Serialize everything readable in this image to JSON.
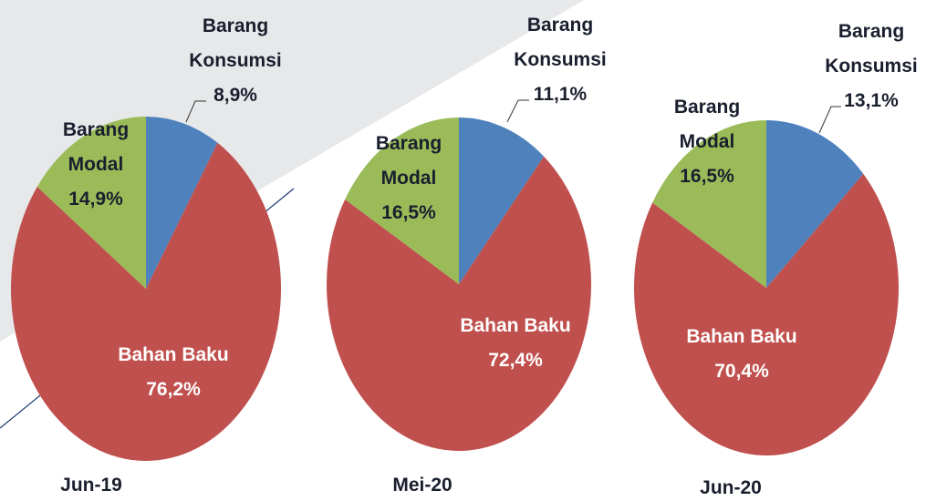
{
  "chart_data": [
    {
      "type": "pie",
      "title": "Jun-19",
      "categories": [
        "Barang Konsumsi",
        "Bahan Baku",
        "Barang Modal"
      ],
      "values": [
        8.9,
        76.2,
        14.9
      ],
      "value_labels": [
        "8,9%",
        "76,2%",
        "14,9%"
      ],
      "colors": [
        "#4f81bd",
        "#c0504d",
        "#9bbb59"
      ]
    },
    {
      "type": "pie",
      "title": "Mei-20",
      "categories": [
        "Barang Konsumsi",
        "Bahan Baku",
        "Barang Modal"
      ],
      "values": [
        11.1,
        72.4,
        16.5
      ],
      "value_labels": [
        "11,1%",
        "72,4%",
        "16,5%"
      ],
      "colors": [
        "#4f81bd",
        "#c0504d",
        "#9bbb59"
      ]
    },
    {
      "type": "pie",
      "title": "Jun-20",
      "categories": [
        "Barang Konsumsi",
        "Bahan Baku",
        "Barang Modal"
      ],
      "values": [
        13.1,
        70.4,
        16.5
      ],
      "value_labels": [
        "13,1%",
        "70,4%",
        "16,5%"
      ],
      "colors": [
        "#4f81bd",
        "#c0504d",
        "#9bbb59"
      ]
    }
  ]
}
